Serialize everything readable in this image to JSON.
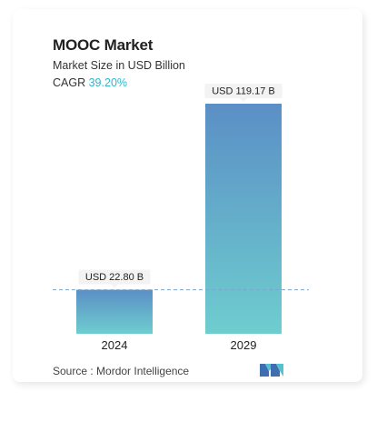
{
  "header": {
    "title": "MOOC Market",
    "subtitle": "Market Size in USD Billion",
    "cagr_label": "CAGR",
    "cagr_value": "39.20%"
  },
  "footer": {
    "source_label": "Source :",
    "source_name": "Mordor Intelligence",
    "logo_icon": "mordor-intelligence-logo-icon"
  },
  "colors": {
    "bar_top": "#5b8fc6",
    "bar_bottom": "#6ecdcf",
    "cagr": "#2fb6c9",
    "baseline_dash": "#7aa7cf"
  },
  "chart_data": {
    "type": "bar",
    "categories": [
      "2024",
      "2029"
    ],
    "values": [
      22.8,
      119.17
    ],
    "data_labels": [
      "USD 22.80 B",
      "USD 119.17 B"
    ],
    "title": "MOOC Market",
    "subtitle": "Market Size in USD Billion",
    "xlabel": "",
    "ylabel": "",
    "grid": false,
    "reference_line_value": 22.8
  }
}
